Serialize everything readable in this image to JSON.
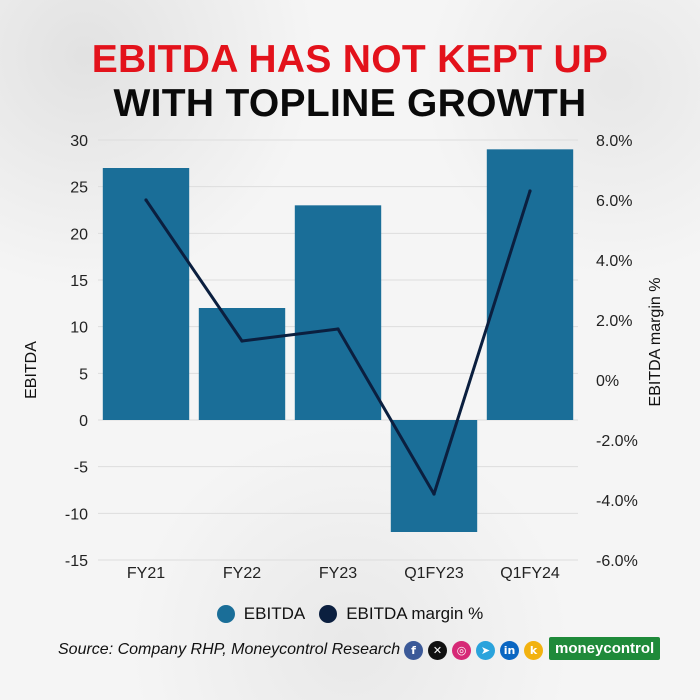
{
  "title_line1": "EBITDA HAS NOT KEPT UP",
  "title_line2": "WITH TOPLINE GROWTH",
  "source": "Source: Company RHP, Moneycontrol Research",
  "brand": "moneycontrol",
  "colors": {
    "title_accent": "#e3121b",
    "bar": "#1a6e98",
    "line": "#0b1f3f",
    "brand": "#1f8a3a"
  },
  "socials": [
    {
      "name": "facebook-icon",
      "glyph": "f",
      "color": "#3b5998"
    },
    {
      "name": "x-icon",
      "glyph": "✕",
      "color": "#111111"
    },
    {
      "name": "instagram-icon",
      "glyph": "◎",
      "color": "#d62976"
    },
    {
      "name": "telegram-icon",
      "glyph": "➤",
      "color": "#2aa3dc"
    },
    {
      "name": "linkedin-icon",
      "glyph": "in",
      "color": "#0a66c2"
    },
    {
      "name": "koo-icon",
      "glyph": "k",
      "color": "#f2b20f"
    }
  ],
  "chart_data": {
    "type": "bar",
    "categories": [
      "FY21",
      "FY22",
      "FY23",
      "Q1FY23",
      "Q1FY24"
    ],
    "series": [
      {
        "name": "EBITDA",
        "type": "bar",
        "axis": "left",
        "values": [
          27,
          12,
          23,
          -12,
          29
        ]
      },
      {
        "name": "EBITDA margin %",
        "type": "line",
        "axis": "right",
        "values": [
          6.0,
          1.3,
          1.7,
          -3.8,
          6.3
        ]
      }
    ],
    "ylabel": "EBITDA",
    "y2label": "EBITDA margin %",
    "ylim": [
      -15,
      30
    ],
    "y2lim": [
      -6,
      8
    ],
    "yticks": [
      "30",
      "25",
      "20",
      "15",
      "10",
      "5",
      "0",
      "-5",
      "-10",
      "-15"
    ],
    "y2ticks": [
      "8.0%",
      "6.0%",
      "4.0%",
      "2.0%",
      "0%",
      "-2.0%",
      "-4.0%",
      "-6.0%"
    ],
    "grid": true,
    "legend": [
      "EBITDA",
      "EBITDA margin %"
    ],
    "legend_position": "bottom"
  }
}
